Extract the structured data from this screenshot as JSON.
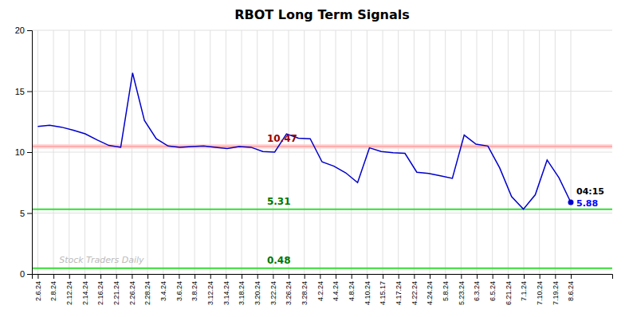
{
  "chart_data": {
    "type": "line",
    "title": "RBOT Long Term Signals",
    "x": [
      0,
      1,
      2,
      3,
      4,
      5,
      6,
      7,
      8,
      9,
      10,
      11,
      12,
      13,
      14,
      15,
      16,
      17,
      18,
      19,
      20,
      21,
      22,
      23,
      24,
      25,
      26,
      27,
      28,
      29,
      30,
      31,
      32,
      33,
      34,
      35,
      36,
      37,
      38,
      39,
      40,
      41,
      42,
      43,
      44,
      45
    ],
    "values": [
      12.1,
      12.2,
      12.05,
      11.8,
      11.5,
      11.0,
      10.55,
      10.4,
      16.5,
      12.6,
      11.1,
      10.5,
      10.4,
      10.45,
      10.5,
      10.4,
      10.3,
      10.45,
      10.4,
      10.05,
      10.0,
      11.5,
      11.15,
      11.1,
      9.2,
      8.85,
      8.3,
      7.5,
      10.35,
      10.05,
      9.95,
      9.9,
      8.35,
      8.25,
      8.05,
      7.85,
      11.4,
      10.65,
      10.5,
      8.7,
      6.35,
      5.32,
      6.5,
      9.35,
      7.9,
      5.88
    ],
    "color": "#0000cc",
    "xlim": [
      -0.5,
      48.5
    ],
    "xticks": [
      {
        "value": 0,
        "label": "2.6.24"
      },
      {
        "value": 1.3235294117647058,
        "label": "2.8.24"
      },
      {
        "value": 2.6470588235294117,
        "label": "2.12.24"
      },
      {
        "value": 3.9705882352941178,
        "label": "2.14.24"
      },
      {
        "value": 5.294117647058823,
        "label": "2.16.24"
      },
      {
        "value": 6.617647058823529,
        "label": "2.21.24"
      },
      {
        "value": 7.9411764705882355,
        "label": "2.26.24"
      },
      {
        "value": 9.264705882352942,
        "label": "2.28.24"
      },
      {
        "value": 10.588235294117647,
        "label": "3.4.24"
      },
      {
        "value": 11.911764705882353,
        "label": "3.6.24"
      },
      {
        "value": 13.235294117647058,
        "label": "3.8.24"
      },
      {
        "value": 14.558823529411764,
        "label": "3.12.24"
      },
      {
        "value": 15.882352941176471,
        "label": "3.14.24"
      },
      {
        "value": 17.205882352941178,
        "label": "3.18.24"
      },
      {
        "value": 18.529411764705884,
        "label": "3.20.24"
      },
      {
        "value": 19.852941176470587,
        "label": "3.22.24"
      },
      {
        "value": 21.176470588235293,
        "label": "3.26.24"
      },
      {
        "value": 22.5,
        "label": "3.28.24"
      },
      {
        "value": 23.823529411764707,
        "label": "4.2.24"
      },
      {
        "value": 25.147058823529413,
        "label": "4.4.24"
      },
      {
        "value": 26.470588235294116,
        "label": "4.8.24"
      },
      {
        "value": 27.794117647058822,
        "label": "4.10.24"
      },
      {
        "value": 29.11764705882353,
        "label": "4.15.17"
      },
      {
        "value": 30.441176470588236,
        "label": "4.17.24"
      },
      {
        "value": 31.764705882352942,
        "label": "4.22.24"
      },
      {
        "value": 33.088235294117645,
        "label": "4.24.24"
      },
      {
        "value": 34.41176470588235,
        "label": "5.8.24"
      },
      {
        "value": 35.73529411764706,
        "label": "5.23.24"
      },
      {
        "value": 37.05882352941177,
        "label": "6.3.24"
      },
      {
        "value": 38.38235294117647,
        "label": "6.5.24"
      },
      {
        "value": 39.705882352941174,
        "label": "6.21.24"
      },
      {
        "value": 41.029411764705884,
        "label": "7.1.24"
      },
      {
        "value": 42.35294117647059,
        "label": "7.10.24"
      },
      {
        "value": 43.67647058823529,
        "label": "7.19.24"
      },
      {
        "value": 45,
        "label": "8.6.24"
      }
    ],
    "ylim": [
      0,
      20
    ],
    "yticks": [
      0,
      5,
      10,
      15,
      20
    ],
    "grid": true,
    "reference_lines": [
      {
        "value": 10.47,
        "label": "10.47",
        "color": "#ff8888",
        "label_color": "#990000",
        "band_color": "#ffcccc"
      },
      {
        "value": 5.31,
        "label": "5.31",
        "color": "#33dd33",
        "label_color": "#007700"
      },
      {
        "value": 0.48,
        "label": "0.48",
        "color": "#33dd33",
        "label_color": "#007700"
      }
    ],
    "annotations": [
      {
        "text": "04:15"
      },
      {
        "text": "5.88",
        "color": "#0000ff"
      }
    ],
    "watermark": {
      "text": "Stock Traders Daily",
      "color": "#bbbbbb"
    }
  }
}
